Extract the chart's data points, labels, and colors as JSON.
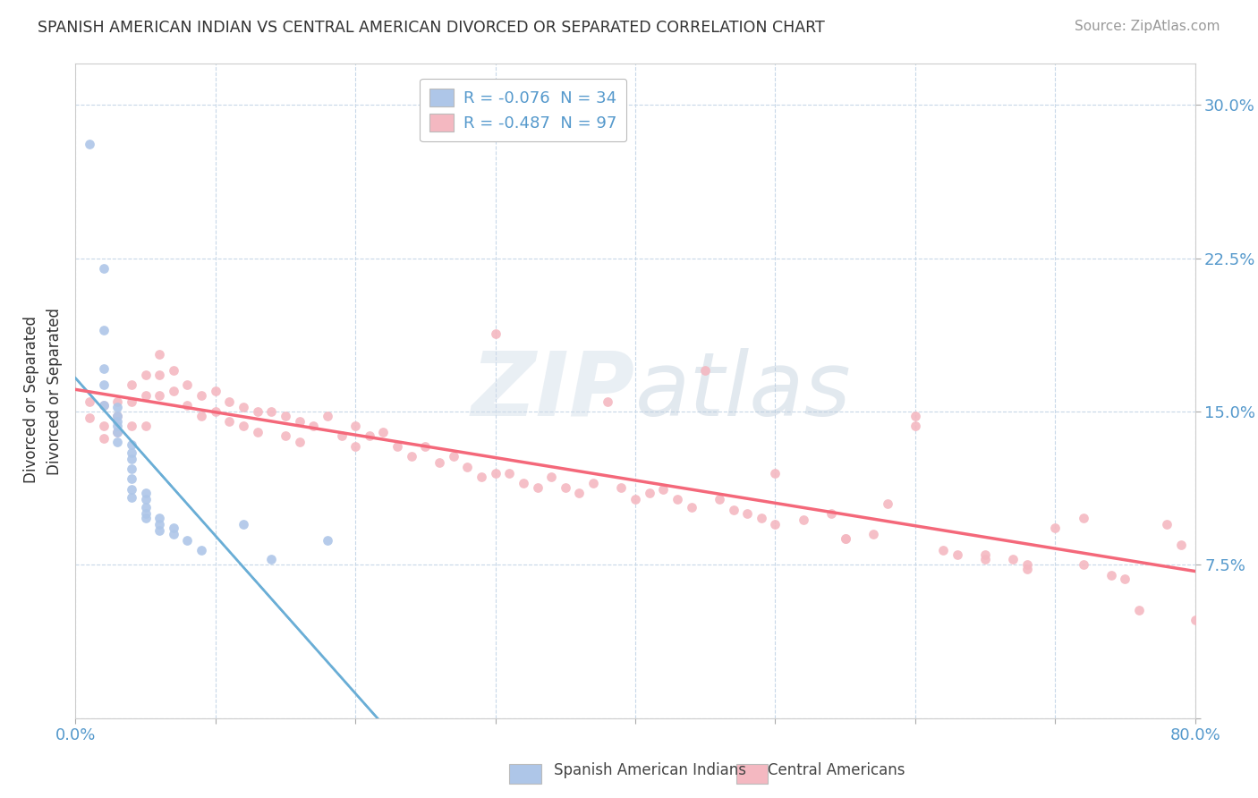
{
  "title": "SPANISH AMERICAN INDIAN VS CENTRAL AMERICAN DIVORCED OR SEPARATED CORRELATION CHART",
  "source": "Source: ZipAtlas.com",
  "ylabel": "Divorced or Separated",
  "xlim": [
    0.0,
    0.8
  ],
  "ylim": [
    0.0,
    0.32
  ],
  "yticks": [
    0.0,
    0.075,
    0.15,
    0.225,
    0.3
  ],
  "ytick_labels": [
    "",
    "7.5%",
    "15.0%",
    "22.5%",
    "30.0%"
  ],
  "xticks": [
    0.0,
    0.1,
    0.2,
    0.3,
    0.4,
    0.5,
    0.6,
    0.7,
    0.8
  ],
  "xtick_labels": [
    "0.0%",
    "",
    "",
    "",
    "",
    "",
    "",
    "",
    "80.0%"
  ],
  "legend1_label": "R = -0.076  N = 34",
  "legend2_label": "R = -0.487  N = 97",
  "legend1_color": "#aec6e8",
  "legend2_color": "#f4b8c1",
  "scatter1_color": "#aec6e8",
  "scatter2_color": "#f4b8c1",
  "line1_color": "#6aaed6",
  "line2_color": "#f4687a",
  "background_color": "#ffffff",
  "grid_color": "#c8d8e8",
  "scatter1_x": [
    0.01,
    0.02,
    0.02,
    0.02,
    0.02,
    0.02,
    0.03,
    0.03,
    0.03,
    0.03,
    0.03,
    0.03,
    0.04,
    0.04,
    0.04,
    0.04,
    0.04,
    0.04,
    0.04,
    0.05,
    0.05,
    0.05,
    0.05,
    0.05,
    0.06,
    0.06,
    0.06,
    0.07,
    0.07,
    0.08,
    0.09,
    0.12,
    0.14,
    0.18
  ],
  "scatter1_y": [
    0.281,
    0.22,
    0.19,
    0.171,
    0.163,
    0.153,
    0.152,
    0.148,
    0.145,
    0.143,
    0.14,
    0.135,
    0.134,
    0.13,
    0.127,
    0.122,
    0.117,
    0.112,
    0.108,
    0.11,
    0.107,
    0.103,
    0.1,
    0.098,
    0.098,
    0.095,
    0.092,
    0.093,
    0.09,
    0.087,
    0.082,
    0.095,
    0.078,
    0.087
  ],
  "scatter2_x": [
    0.01,
    0.01,
    0.02,
    0.02,
    0.02,
    0.03,
    0.03,
    0.03,
    0.04,
    0.04,
    0.04,
    0.05,
    0.05,
    0.05,
    0.06,
    0.06,
    0.06,
    0.07,
    0.07,
    0.08,
    0.08,
    0.09,
    0.09,
    0.1,
    0.1,
    0.11,
    0.11,
    0.12,
    0.12,
    0.13,
    0.13,
    0.14,
    0.15,
    0.15,
    0.16,
    0.16,
    0.17,
    0.18,
    0.19,
    0.2,
    0.2,
    0.21,
    0.22,
    0.23,
    0.24,
    0.25,
    0.26,
    0.27,
    0.28,
    0.29,
    0.3,
    0.3,
    0.31,
    0.32,
    0.33,
    0.34,
    0.35,
    0.36,
    0.37,
    0.38,
    0.39,
    0.4,
    0.41,
    0.42,
    0.43,
    0.44,
    0.45,
    0.46,
    0.47,
    0.48,
    0.49,
    0.5,
    0.52,
    0.54,
    0.55,
    0.57,
    0.58,
    0.6,
    0.62,
    0.63,
    0.65,
    0.67,
    0.68,
    0.7,
    0.72,
    0.74,
    0.5,
    0.55,
    0.6,
    0.65,
    0.68,
    0.72,
    0.75,
    0.76,
    0.78,
    0.79,
    0.8
  ],
  "scatter2_y": [
    0.155,
    0.147,
    0.153,
    0.143,
    0.137,
    0.155,
    0.148,
    0.14,
    0.163,
    0.155,
    0.143,
    0.168,
    0.158,
    0.143,
    0.178,
    0.168,
    0.158,
    0.17,
    0.16,
    0.163,
    0.153,
    0.158,
    0.148,
    0.16,
    0.15,
    0.155,
    0.145,
    0.152,
    0.143,
    0.15,
    0.14,
    0.15,
    0.148,
    0.138,
    0.145,
    0.135,
    0.143,
    0.148,
    0.138,
    0.143,
    0.133,
    0.138,
    0.14,
    0.133,
    0.128,
    0.133,
    0.125,
    0.128,
    0.123,
    0.118,
    0.188,
    0.12,
    0.12,
    0.115,
    0.113,
    0.118,
    0.113,
    0.11,
    0.115,
    0.155,
    0.113,
    0.107,
    0.11,
    0.112,
    0.107,
    0.103,
    0.17,
    0.107,
    0.102,
    0.1,
    0.098,
    0.095,
    0.097,
    0.1,
    0.088,
    0.09,
    0.105,
    0.148,
    0.082,
    0.08,
    0.08,
    0.078,
    0.075,
    0.093,
    0.075,
    0.07,
    0.12,
    0.088,
    0.143,
    0.078,
    0.073,
    0.098,
    0.068,
    0.053,
    0.095,
    0.085,
    0.048
  ]
}
